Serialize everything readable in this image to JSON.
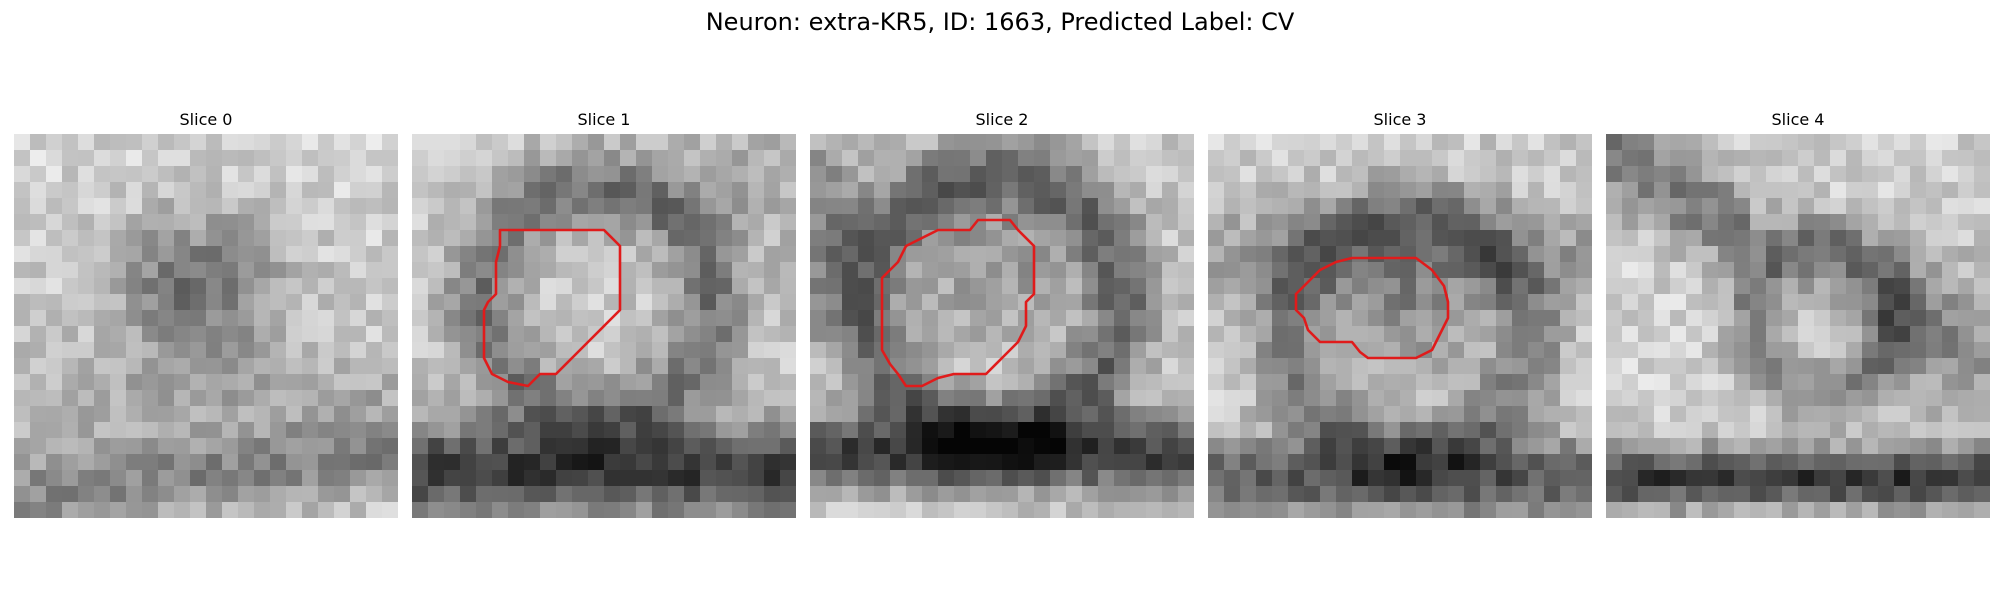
{
  "figure": {
    "title": "Neuron: extra-KR5, ID: 1663, Predicted Label: CV",
    "contour_color": "#e01b1b"
  },
  "panels": [
    {
      "title": "Slice 0",
      "has_contour": false
    },
    {
      "title": "Slice 1",
      "has_contour": true
    },
    {
      "title": "Slice 2",
      "has_contour": true
    },
    {
      "title": "Slice 3",
      "has_contour": true
    },
    {
      "title": "Slice 4",
      "has_contour": false
    }
  ]
}
